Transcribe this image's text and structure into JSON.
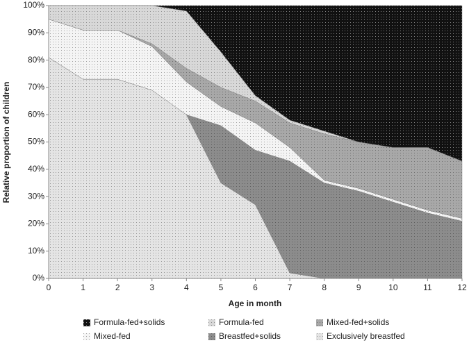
{
  "chart_data": {
    "type": "stacked-area",
    "x": [
      0,
      1,
      2,
      3,
      4,
      5,
      6,
      7,
      8,
      9,
      10,
      11,
      12
    ],
    "xlabel": "Age in month",
    "ylabel": "Relative proportion of children",
    "xlim": [
      0,
      12
    ],
    "ylim": [
      0,
      100
    ],
    "xticks": [
      0,
      1,
      2,
      3,
      4,
      5,
      6,
      7,
      8,
      9,
      10,
      11,
      12
    ],
    "yticks": [
      {
        "value": 0,
        "label": "0%"
      },
      {
        "value": 10,
        "label": "10%"
      },
      {
        "value": 20,
        "label": "20%"
      },
      {
        "value": 30,
        "label": "30%"
      },
      {
        "value": 40,
        "label": "40%"
      },
      {
        "value": 50,
        "label": "50%"
      },
      {
        "value": 60,
        "label": "60%"
      },
      {
        "value": 70,
        "label": "70%"
      },
      {
        "value": 80,
        "label": "80%"
      },
      {
        "value": 90,
        "label": "90%"
      },
      {
        "value": 100,
        "label": "100%"
      }
    ],
    "series": [
      {
        "name": "Exclusively breastfed",
        "color": "#e4e4e4",
        "values": [
          81,
          73,
          73,
          69,
          60,
          35,
          27,
          2,
          0,
          0,
          0,
          0,
          0
        ]
      },
      {
        "name": "Breastfed+solids",
        "color": "#8c8c8c",
        "values": [
          0,
          0,
          0,
          0,
          0,
          21,
          20,
          41,
          35,
          32,
          28,
          24,
          21
        ]
      },
      {
        "name": "Mixed-fed",
        "color": "#f4f4f4",
        "values": [
          14,
          18,
          18,
          16,
          12,
          7,
          10,
          5,
          1,
          1,
          1,
          1,
          1
        ]
      },
      {
        "name": "Mixed-fed+solids",
        "color": "#a8a8a8",
        "values": [
          0,
          0,
          0,
          1,
          5,
          7,
          8,
          9,
          17,
          17,
          19,
          23,
          21
        ]
      },
      {
        "name": "Formula-fed",
        "color": "#d8d8d8",
        "values": [
          5,
          9,
          9,
          14,
          21,
          13,
          2,
          1,
          1,
          0,
          0,
          0,
          0
        ]
      },
      {
        "name": "Formula-fed+solids",
        "color": "#111111",
        "values": [
          0,
          0,
          0,
          0,
          2,
          17,
          33,
          42,
          46,
          50,
          52,
          52,
          57
        ]
      }
    ]
  }
}
